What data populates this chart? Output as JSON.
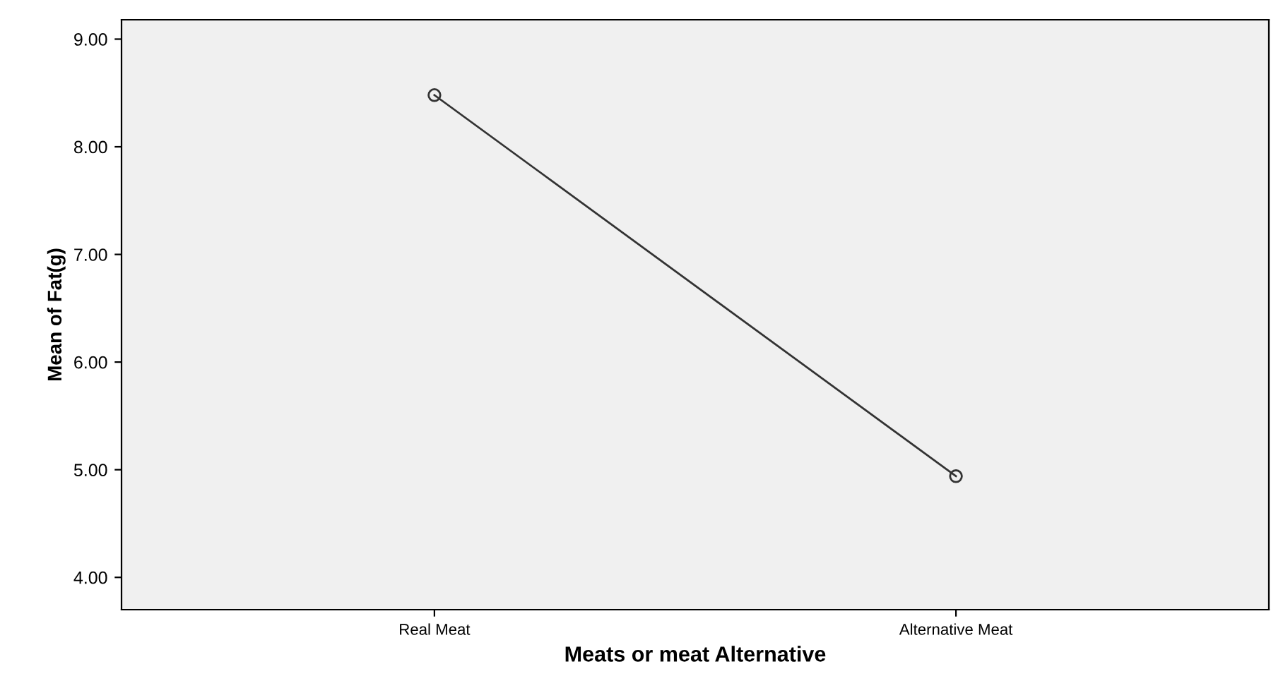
{
  "chart_data": {
    "type": "line",
    "xlabel": "Meats or meat Alternative",
    "ylabel": "Mean of Fat(g)",
    "categories": [
      "Real Meat",
      "Alternative Meat"
    ],
    "series": [
      {
        "color": "#333333",
        "values": [
          8.48,
          4.94
        ]
      }
    ],
    "marker": "circle",
    "line_style": "solid",
    "grid": false,
    "legend": false,
    "ylim": [
      3.7,
      9.18
    ],
    "yticks": [
      {
        "value": 4,
        "label": "4.00"
      },
      {
        "value": 5,
        "label": "5.00"
      },
      {
        "value": 6,
        "label": "6.00"
      },
      {
        "value": 7,
        "label": "7.00"
      },
      {
        "value": 8,
        "label": "8.00"
      },
      {
        "value": 9,
        "label": "9.00"
      }
    ]
  }
}
